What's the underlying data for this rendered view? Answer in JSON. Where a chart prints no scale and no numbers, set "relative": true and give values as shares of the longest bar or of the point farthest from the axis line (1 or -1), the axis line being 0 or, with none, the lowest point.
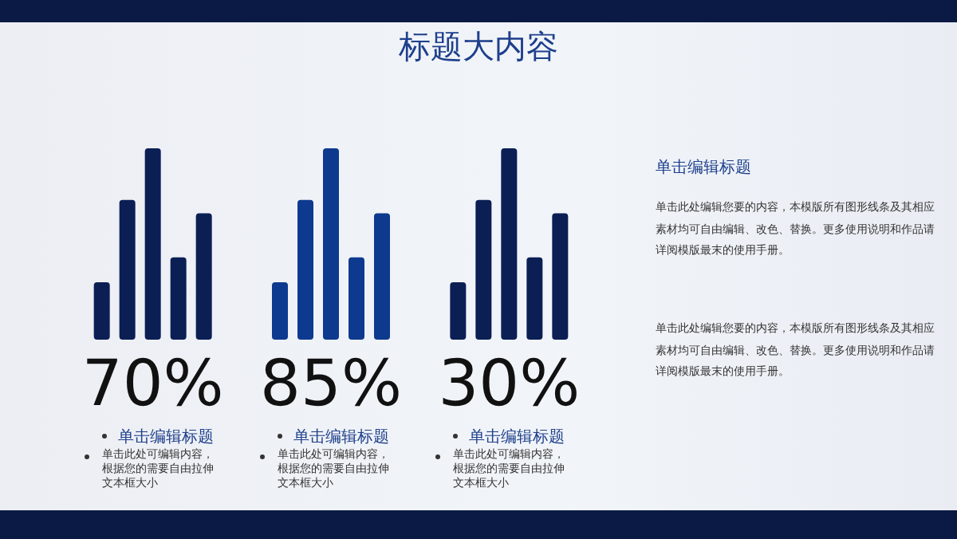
{
  "chart_data": {
    "type": "bar",
    "relative": true,
    "title": "标题大内容",
    "categories": [
      "70%",
      "85%",
      "30%"
    ],
    "series": [
      {
        "colors": [
          "#0b1f55",
          "#0d3a8f",
          "#0b1f55"
        ],
        "values": [
          0.3,
          0.3,
          0.3
        ]
      },
      {
        "colors": [
          "#0b1f55",
          "#0d3a8f",
          "#0b1f55"
        ],
        "values": [
          0.73,
          0.73,
          0.73
        ]
      },
      {
        "colors": [
          "#0b1f55",
          "#0d3a8f",
          "#0b1f55"
        ],
        "values": [
          1,
          1,
          1
        ]
      },
      {
        "colors": [
          "#0b1f55",
          "#0d3a8f",
          "#0b1f55"
        ],
        "values": [
          0.43,
          0.43,
          0.43
        ]
      },
      {
        "colors": [
          "#0b1f55",
          "#0d3a8f",
          "#0b1f55"
        ],
        "values": [
          0.66,
          0.66,
          0.66
        ]
      }
    ],
    "annotations": [
      "单击编辑标题",
      "单击编辑标题",
      "单击编辑标题",
      "单击此处可编辑内容，根据您的需要自由拉伸文本框大小",
      "单击此处可编辑内容，根据您的需要自由拉伸文本框大小",
      "单击此处可编辑内容，根据您的需要自由拉伸文本框大小",
      "单击编辑标题",
      "单击此处编辑您要的内容，本模版所有图形线条及其相应素材均可自由编辑、改色、替换。更多使用说明和作品请详阅模版最末的使用手册。",
      "单击此处编辑您要的内容，本模版所有图形线条及其相应素材均可自由编辑、改色、替换。更多使用说明和作品请详阅模版最末的使用手册。"
    ],
    "stacked": false
  }
}
